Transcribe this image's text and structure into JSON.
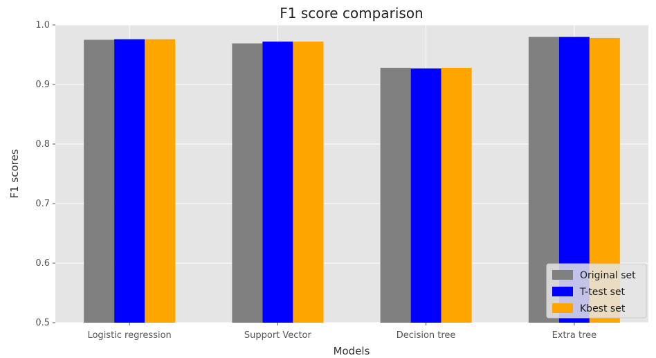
{
  "chart_data": {
    "type": "bar",
    "title": "F1 score comparison",
    "xlabel": "Models",
    "ylabel": "F1 scores",
    "ylim": [
      0.5,
      1.0
    ],
    "yticks": [
      0.5,
      0.6,
      0.7,
      0.8,
      0.9,
      1.0
    ],
    "ytick_labels": [
      "0.5",
      "0.6",
      "0.7",
      "0.8",
      "0.9",
      "1.0"
    ],
    "grid": true,
    "legend_position": "bottom-right",
    "categories": [
      "Logistic regression",
      "Support Vector",
      "Decision tree",
      "Extra tree"
    ],
    "series": [
      {
        "name": "Original set",
        "color": "#808080",
        "values": [
          0.975,
          0.969,
          0.928,
          0.98
        ]
      },
      {
        "name": "T-test set",
        "color": "#0000ff",
        "values": [
          0.976,
          0.972,
          0.927,
          0.98
        ]
      },
      {
        "name": "Kbest set",
        "color": "#ffa500",
        "values": [
          0.976,
          0.972,
          0.928,
          0.978
        ]
      }
    ]
  }
}
